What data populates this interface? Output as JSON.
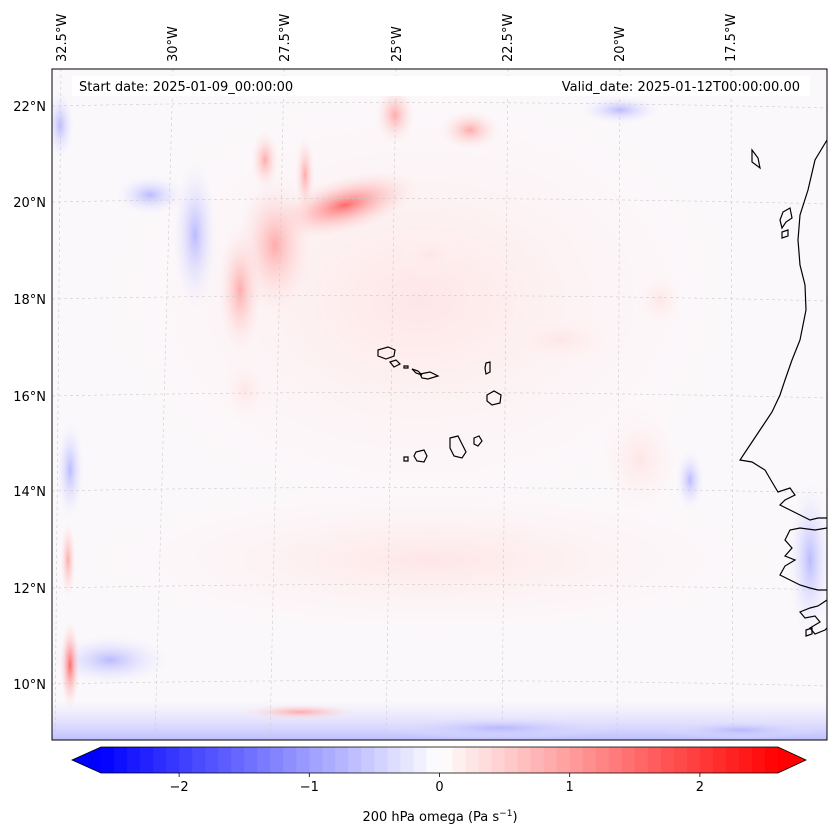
{
  "header": {
    "start_date": "Start date: 2025-01-09_00:00:00",
    "valid_date": "Valid_date: 2025-01-12T00:00:00.00"
  },
  "map": {
    "lon_labels": [
      "32.5°W",
      "30°W",
      "27.5°W",
      "25°W",
      "22.5°W",
      "20°W",
      "17.5°W"
    ],
    "lat_labels": [
      "22°N",
      "20°N",
      "18°N",
      "16°N",
      "14°N",
      "12°N",
      "10°N"
    ]
  },
  "colorbar": {
    "label": "200 hPa omega (Pa s",
    "label_exp": "−1",
    "label_close": ")",
    "ticks": [
      "−2",
      "−1",
      "0",
      "1",
      "2"
    ],
    "tick_values": [
      -2,
      -1,
      0,
      1,
      2
    ],
    "range": [
      -2.6,
      2.6
    ],
    "colormap": "bwr",
    "low_color": "#0000ff",
    "mid_color": "#ffffff",
    "high_color": "#ff0000"
  },
  "colors": {
    "coastline": "#000000",
    "gridline": "#cccccc"
  }
}
